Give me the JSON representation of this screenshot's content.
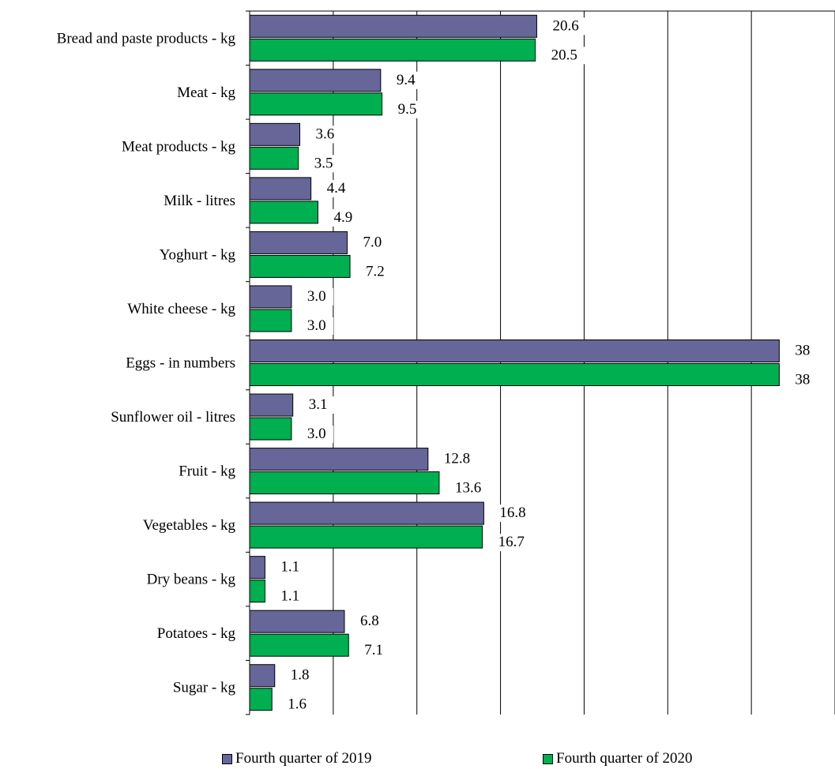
{
  "chart_data": {
    "type": "bar",
    "orientation": "horizontal",
    "categories": [
      "Bread and paste products - kg",
      "Meat - kg",
      "Meat products - kg",
      "Milk - litres",
      "Yoghurt - kg",
      "White cheese - kg",
      "Eggs - in numbers",
      "Sunflower oil - litres",
      "Fruit - kg",
      "Vegetables - kg",
      "Dry beans - kg",
      "Potatoes - kg",
      "Sugar - kg"
    ],
    "series": [
      {
        "name": "Fourth quarter of 2019",
        "color": "#666699",
        "values": [
          20.6,
          9.4,
          3.6,
          4.4,
          7.0,
          3.0,
          38,
          3.1,
          12.8,
          16.8,
          1.1,
          6.8,
          1.8
        ],
        "labels": [
          "20.6",
          "9.4",
          "3.6",
          "4.4",
          "7.0",
          "3.0",
          "38",
          "3.1",
          "12.8",
          "16.8",
          "1.1",
          "6.8",
          "1.8"
        ]
      },
      {
        "name": "Fourth quarter of 2020",
        "color": "#00B050",
        "values": [
          20.5,
          9.5,
          3.5,
          4.9,
          7.2,
          3.0,
          38,
          3.0,
          13.6,
          16.7,
          1.1,
          7.1,
          1.6
        ],
        "labels": [
          "20.5",
          "9.5",
          "3.5",
          "4.9",
          "7.2",
          "3.0",
          "38",
          "3.0",
          "13.6",
          "16.7",
          "1.1",
          "7.1",
          "1.6"
        ]
      }
    ],
    "xlim": [
      0,
      42
    ],
    "xgrid_step": 6,
    "grid": true,
    "legend_position": "bottom"
  }
}
